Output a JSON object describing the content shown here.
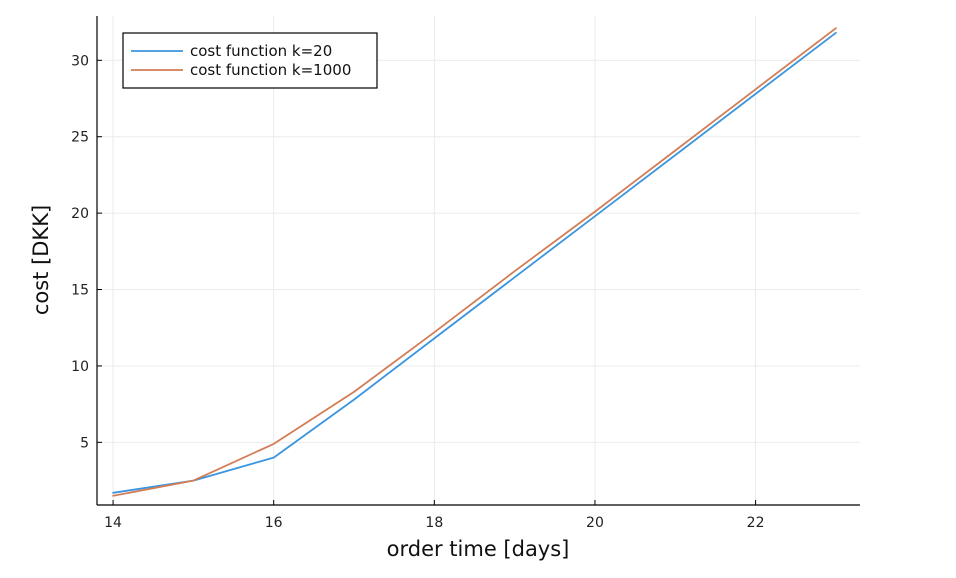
{
  "chart_data": {
    "type": "line",
    "title": "",
    "xlabel": "order time [days]",
    "ylabel": "cost [DKK]",
    "xlim": [
      13.8,
      23.3
    ],
    "ylim": [
      0.9,
      32.9
    ],
    "xticks": [
      14,
      16,
      18,
      20,
      22
    ],
    "yticks": [
      5,
      10,
      15,
      20,
      25,
      30
    ],
    "grid": true,
    "legend_position": "top-left",
    "x": [
      14,
      15,
      16,
      17,
      18,
      19,
      20,
      21,
      22,
      23
    ],
    "series": [
      {
        "name": "cost function k=20",
        "color": "#3a95e0",
        "values": [
          1.7,
          2.5,
          4.0,
          7.8,
          11.8,
          15.8,
          19.8,
          23.8,
          27.8,
          31.8
        ]
      },
      {
        "name": "cost function k=1000",
        "color": "#d27d55",
        "values": [
          1.5,
          2.5,
          4.9,
          8.3,
          12.2,
          16.2,
          20.1,
          24.1,
          28.1,
          32.1
        ]
      }
    ]
  }
}
